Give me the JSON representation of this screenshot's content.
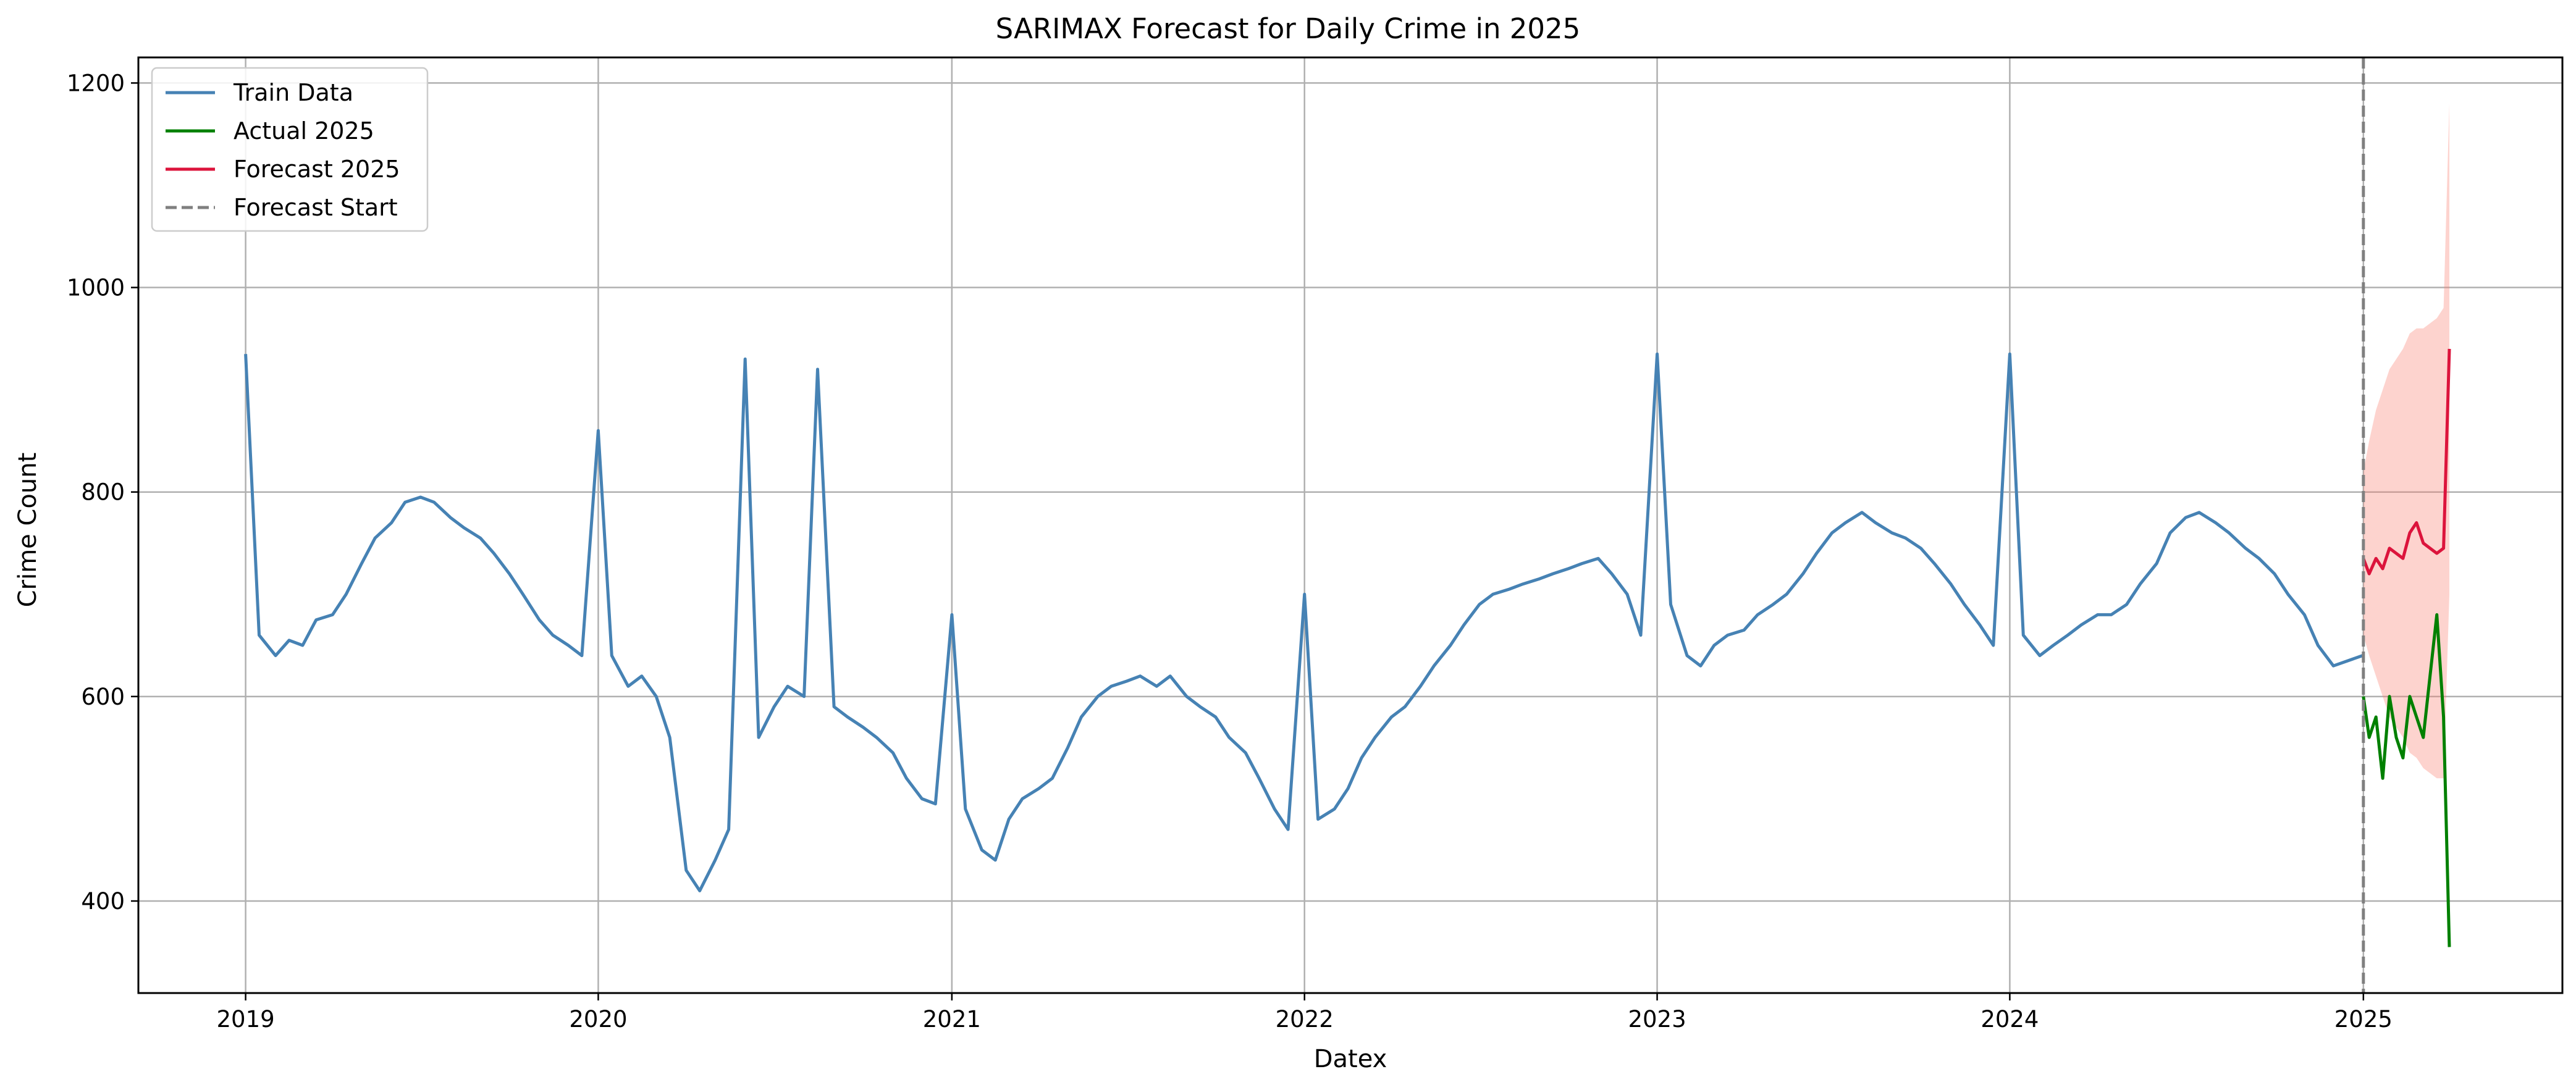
{
  "chart_data": {
    "type": "line",
    "title": "SARIMAX Forecast for Daily Crime in 2025",
    "xlabel": "Datex",
    "ylabel": "Crime Count",
    "xlim": [
      "2018-09-12",
      "2025-07-26"
    ],
    "ylim": [
      310,
      1225
    ],
    "x_ticks": [
      {
        "date": "2019-01-01",
        "label": "2019"
      },
      {
        "date": "2020-01-01",
        "label": "2020"
      },
      {
        "date": "2021-01-01",
        "label": "2021"
      },
      {
        "date": "2022-01-01",
        "label": "2022"
      },
      {
        "date": "2023-01-01",
        "label": "2023"
      },
      {
        "date": "2024-01-01",
        "label": "2024"
      },
      {
        "date": "2025-01-01",
        "label": "2025"
      }
    ],
    "y_ticks": [
      400,
      600,
      800,
      1000,
      1200
    ],
    "grid": true,
    "legend_position": "upper-left",
    "forecast_start": "2025-01-01",
    "series": [
      {
        "name": "Train Data",
        "color": "#4682b4",
        "sampling": "monthly-averaged-profile",
        "points": [
          [
            "2019-01-01",
            935
          ],
          [
            "2019-01-15",
            660
          ],
          [
            "2019-02-01",
            640
          ],
          [
            "2019-02-15",
            655
          ],
          [
            "2019-03-01",
            650
          ],
          [
            "2019-03-15",
            675
          ],
          [
            "2019-04-01",
            680
          ],
          [
            "2019-04-15",
            700
          ],
          [
            "2019-05-01",
            730
          ],
          [
            "2019-05-15",
            755
          ],
          [
            "2019-06-01",
            770
          ],
          [
            "2019-06-15",
            790
          ],
          [
            "2019-07-01",
            795
          ],
          [
            "2019-07-15",
            790
          ],
          [
            "2019-08-01",
            775
          ],
          [
            "2019-08-15",
            765
          ],
          [
            "2019-09-01",
            755
          ],
          [
            "2019-09-15",
            740
          ],
          [
            "2019-10-01",
            720
          ],
          [
            "2019-10-15",
            700
          ],
          [
            "2019-11-01",
            675
          ],
          [
            "2019-11-15",
            660
          ],
          [
            "2019-12-01",
            650
          ],
          [
            "2019-12-15",
            640
          ],
          [
            "2020-01-01",
            860
          ],
          [
            "2020-01-15",
            640
          ],
          [
            "2020-02-01",
            610
          ],
          [
            "2020-02-15",
            620
          ],
          [
            "2020-03-01",
            600
          ],
          [
            "2020-03-15",
            560
          ],
          [
            "2020-04-01",
            430
          ],
          [
            "2020-04-15",
            410
          ],
          [
            "2020-05-01",
            440
          ],
          [
            "2020-05-15",
            470
          ],
          [
            "2020-06-01",
            930
          ],
          [
            "2020-06-15",
            560
          ],
          [
            "2020-07-01",
            590
          ],
          [
            "2020-07-15",
            610
          ],
          [
            "2020-08-01",
            600
          ],
          [
            "2020-08-15",
            920
          ],
          [
            "2020-09-01",
            590
          ],
          [
            "2020-09-15",
            580
          ],
          [
            "2020-10-01",
            570
          ],
          [
            "2020-10-15",
            560
          ],
          [
            "2020-11-01",
            545
          ],
          [
            "2020-11-15",
            520
          ],
          [
            "2020-12-01",
            500
          ],
          [
            "2020-12-15",
            495
          ],
          [
            "2021-01-01",
            680
          ],
          [
            "2021-01-15",
            490
          ],
          [
            "2021-02-01",
            450
          ],
          [
            "2021-02-15",
            440
          ],
          [
            "2021-03-01",
            480
          ],
          [
            "2021-03-15",
            500
          ],
          [
            "2021-04-01",
            510
          ],
          [
            "2021-04-15",
            520
          ],
          [
            "2021-05-01",
            550
          ],
          [
            "2021-05-15",
            580
          ],
          [
            "2021-06-01",
            600
          ],
          [
            "2021-06-15",
            610
          ],
          [
            "2021-07-01",
            615
          ],
          [
            "2021-07-15",
            620
          ],
          [
            "2021-08-01",
            610
          ],
          [
            "2021-08-15",
            620
          ],
          [
            "2021-09-01",
            600
          ],
          [
            "2021-09-15",
            590
          ],
          [
            "2021-10-01",
            580
          ],
          [
            "2021-10-15",
            560
          ],
          [
            "2021-11-01",
            545
          ],
          [
            "2021-11-15",
            520
          ],
          [
            "2021-12-01",
            490
          ],
          [
            "2021-12-15",
            470
          ],
          [
            "2022-01-01",
            700
          ],
          [
            "2022-01-15",
            480
          ],
          [
            "2022-02-01",
            490
          ],
          [
            "2022-02-15",
            510
          ],
          [
            "2022-03-01",
            540
          ],
          [
            "2022-03-15",
            560
          ],
          [
            "2022-04-01",
            580
          ],
          [
            "2022-04-15",
            590
          ],
          [
            "2022-05-01",
            610
          ],
          [
            "2022-05-15",
            630
          ],
          [
            "2022-06-01",
            650
          ],
          [
            "2022-06-15",
            670
          ],
          [
            "2022-07-01",
            690
          ],
          [
            "2022-07-15",
            700
          ],
          [
            "2022-08-01",
            705
          ],
          [
            "2022-08-15",
            710
          ],
          [
            "2022-09-01",
            715
          ],
          [
            "2022-09-15",
            720
          ],
          [
            "2022-10-01",
            725
          ],
          [
            "2022-10-15",
            730
          ],
          [
            "2022-11-01",
            735
          ],
          [
            "2022-11-15",
            720
          ],
          [
            "2022-12-01",
            700
          ],
          [
            "2022-12-15",
            660
          ],
          [
            "2023-01-01",
            935
          ],
          [
            "2023-01-15",
            690
          ],
          [
            "2023-02-01",
            640
          ],
          [
            "2023-02-15",
            630
          ],
          [
            "2023-03-01",
            650
          ],
          [
            "2023-03-15",
            660
          ],
          [
            "2023-04-01",
            665
          ],
          [
            "2023-04-15",
            680
          ],
          [
            "2023-05-01",
            690
          ],
          [
            "2023-05-15",
            700
          ],
          [
            "2023-06-01",
            720
          ],
          [
            "2023-06-15",
            740
          ],
          [
            "2023-07-01",
            760
          ],
          [
            "2023-07-15",
            770
          ],
          [
            "2023-08-01",
            780
          ],
          [
            "2023-08-15",
            770
          ],
          [
            "2023-09-01",
            760
          ],
          [
            "2023-09-15",
            755
          ],
          [
            "2023-10-01",
            745
          ],
          [
            "2023-10-15",
            730
          ],
          [
            "2023-11-01",
            710
          ],
          [
            "2023-11-15",
            690
          ],
          [
            "2023-12-01",
            670
          ],
          [
            "2023-12-15",
            650
          ],
          [
            "2024-01-01",
            935
          ],
          [
            "2024-01-15",
            660
          ],
          [
            "2024-02-01",
            640
          ],
          [
            "2024-02-15",
            650
          ],
          [
            "2024-03-01",
            660
          ],
          [
            "2024-03-15",
            670
          ],
          [
            "2024-04-01",
            680
          ],
          [
            "2024-04-15",
            680
          ],
          [
            "2024-05-01",
            690
          ],
          [
            "2024-05-15",
            710
          ],
          [
            "2024-06-01",
            730
          ],
          [
            "2024-06-15",
            760
          ],
          [
            "2024-07-01",
            775
          ],
          [
            "2024-07-15",
            780
          ],
          [
            "2024-08-01",
            770
          ],
          [
            "2024-08-15",
            760
          ],
          [
            "2024-09-01",
            745
          ],
          [
            "2024-09-15",
            735
          ],
          [
            "2024-10-01",
            720
          ],
          [
            "2024-10-15",
            700
          ],
          [
            "2024-11-01",
            680
          ],
          [
            "2024-11-15",
            650
          ],
          [
            "2024-12-01",
            630
          ],
          [
            "2024-12-31",
            640
          ]
        ]
      },
      {
        "name": "Actual 2025",
        "color": "#008000",
        "sampling": "approximate",
        "points": [
          [
            "2025-01-01",
            600
          ],
          [
            "2025-01-07",
            560
          ],
          [
            "2025-01-14",
            580
          ],
          [
            "2025-01-21",
            520
          ],
          [
            "2025-01-28",
            600
          ],
          [
            "2025-02-04",
            560
          ],
          [
            "2025-02-11",
            540
          ],
          [
            "2025-02-18",
            600
          ],
          [
            "2025-02-25",
            580
          ],
          [
            "2025-03-04",
            560
          ],
          [
            "2025-03-11",
            620
          ],
          [
            "2025-03-18",
            680
          ],
          [
            "2025-03-25",
            580
          ],
          [
            "2025-03-31",
            355
          ]
        ]
      },
      {
        "name": "Forecast 2025",
        "color": "#dc143c",
        "sampling": "approximate",
        "points": [
          [
            "2025-01-01",
            735
          ],
          [
            "2025-01-07",
            720
          ],
          [
            "2025-01-14",
            735
          ],
          [
            "2025-01-21",
            725
          ],
          [
            "2025-01-28",
            745
          ],
          [
            "2025-02-04",
            740
          ],
          [
            "2025-02-11",
            735
          ],
          [
            "2025-02-18",
            760
          ],
          [
            "2025-02-25",
            770
          ],
          [
            "2025-03-04",
            750
          ],
          [
            "2025-03-11",
            745
          ],
          [
            "2025-03-18",
            740
          ],
          [
            "2025-03-25",
            745
          ],
          [
            "2025-03-31",
            940
          ]
        ]
      }
    ],
    "confidence_band": {
      "color": "#fa8072",
      "opacity": 0.35,
      "sampling": "approximate",
      "points": [
        [
          "2025-01-01",
          660,
          820
        ],
        [
          "2025-01-07",
          640,
          850
        ],
        [
          "2025-01-14",
          620,
          880
        ],
        [
          "2025-01-21",
          600,
          900
        ],
        [
          "2025-01-28",
          580,
          920
        ],
        [
          "2025-02-04",
          570,
          930
        ],
        [
          "2025-02-11",
          560,
          940
        ],
        [
          "2025-02-18",
          545,
          955
        ],
        [
          "2025-02-25",
          540,
          960
        ],
        [
          "2025-03-04",
          530,
          960
        ],
        [
          "2025-03-11",
          525,
          965
        ],
        [
          "2025-03-18",
          520,
          970
        ],
        [
          "2025-03-25",
          520,
          980
        ],
        [
          "2025-03-31",
          700,
          1180
        ]
      ]
    },
    "legend": [
      {
        "label": "Train Data",
        "color": "#4682b4",
        "style": "solid"
      },
      {
        "label": "Actual 2025",
        "color": "#008000",
        "style": "solid"
      },
      {
        "label": "Forecast 2025",
        "color": "#dc143c",
        "style": "solid"
      },
      {
        "label": "Forecast Start",
        "color": "#808080",
        "style": "dashed"
      }
    ]
  }
}
